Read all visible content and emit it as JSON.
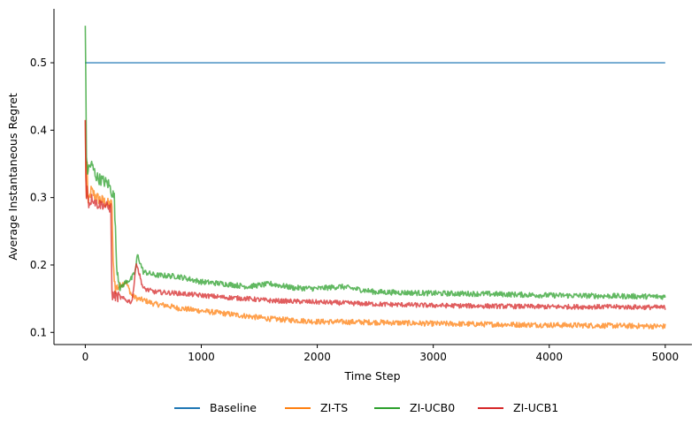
{
  "chart_data": {
    "type": "line",
    "title": "",
    "xlabel": "Time Step",
    "ylabel": "Average Instantaneous Regret",
    "xlim": [
      -270,
      5230
    ],
    "ylim": [
      0.082,
      0.58
    ],
    "xticks": [
      0,
      1000,
      2000,
      3000,
      4000,
      5000
    ],
    "xtick_labels": [
      "0",
      "1000",
      "2000",
      "3000",
      "4000",
      "5000"
    ],
    "yticks": [
      0.1,
      0.2,
      0.3,
      0.4,
      0.5
    ],
    "ytick_labels": [
      "0.1",
      "0.2",
      "0.3",
      "0.4",
      "0.5"
    ],
    "grid": false,
    "legend_placement": "bottom-center",
    "series": [
      {
        "name": "Baseline",
        "color": "#1f77b4",
        "noise": 0,
        "points": [
          [
            0,
            0.5
          ],
          [
            5000,
            0.5
          ]
        ]
      },
      {
        "name": "ZI-TS",
        "color": "#ff7f0e",
        "noise": 0.004,
        "points": [
          [
            0,
            0.415
          ],
          [
            8,
            0.28
          ],
          [
            15,
            0.35
          ],
          [
            25,
            0.29
          ],
          [
            50,
            0.31
          ],
          [
            100,
            0.3
          ],
          [
            150,
            0.295
          ],
          [
            200,
            0.29
          ],
          [
            230,
            0.29
          ],
          [
            240,
            0.2
          ],
          [
            260,
            0.165
          ],
          [
            300,
            0.17
          ],
          [
            350,
            0.175
          ],
          [
            400,
            0.155
          ],
          [
            450,
            0.15
          ],
          [
            500,
            0.148
          ],
          [
            600,
            0.142
          ],
          [
            700,
            0.14
          ],
          [
            800,
            0.136
          ],
          [
            1000,
            0.132
          ],
          [
            1200,
            0.128
          ],
          [
            1400,
            0.124
          ],
          [
            1600,
            0.12
          ],
          [
            1800,
            0.118
          ],
          [
            2000,
            0.116
          ],
          [
            2500,
            0.115
          ],
          [
            3000,
            0.113
          ],
          [
            3500,
            0.112
          ],
          [
            4000,
            0.111
          ],
          [
            4500,
            0.11
          ],
          [
            5000,
            0.109
          ]
        ]
      },
      {
        "name": "ZI-UCB0",
        "color": "#2ca02c",
        "noise": 0.004,
        "points": [
          [
            0,
            0.555
          ],
          [
            5,
            0.47
          ],
          [
            10,
            0.36
          ],
          [
            20,
            0.34
          ],
          [
            50,
            0.35
          ],
          [
            100,
            0.33
          ],
          [
            150,
            0.325
          ],
          [
            200,
            0.32
          ],
          [
            250,
            0.3
          ],
          [
            270,
            0.2
          ],
          [
            300,
            0.165
          ],
          [
            350,
            0.175
          ],
          [
            400,
            0.18
          ],
          [
            430,
            0.19
          ],
          [
            450,
            0.215
          ],
          [
            470,
            0.205
          ],
          [
            500,
            0.19
          ],
          [
            600,
            0.185
          ],
          [
            800,
            0.183
          ],
          [
            1000,
            0.175
          ],
          [
            1200,
            0.172
          ],
          [
            1400,
            0.168
          ],
          [
            1600,
            0.172
          ],
          [
            1800,
            0.166
          ],
          [
            2000,
            0.165
          ],
          [
            2200,
            0.168
          ],
          [
            2500,
            0.16
          ],
          [
            3000,
            0.158
          ],
          [
            3500,
            0.157
          ],
          [
            4000,
            0.155
          ],
          [
            4500,
            0.154
          ],
          [
            5000,
            0.153
          ]
        ]
      },
      {
        "name": "ZI-UCB1",
        "color": "#d62728",
        "noise": 0.0035,
        "points": [
          [
            0,
            0.415
          ],
          [
            8,
            0.29
          ],
          [
            15,
            0.32
          ],
          [
            30,
            0.29
          ],
          [
            60,
            0.3
          ],
          [
            100,
            0.29
          ],
          [
            150,
            0.29
          ],
          [
            200,
            0.285
          ],
          [
            220,
            0.285
          ],
          [
            230,
            0.155
          ],
          [
            300,
            0.152
          ],
          [
            350,
            0.148
          ],
          [
            400,
            0.145
          ],
          [
            420,
            0.17
          ],
          [
            440,
            0.205
          ],
          [
            460,
            0.19
          ],
          [
            500,
            0.165
          ],
          [
            600,
            0.16
          ],
          [
            800,
            0.158
          ],
          [
            1000,
            0.155
          ],
          [
            1200,
            0.152
          ],
          [
            1400,
            0.15
          ],
          [
            1600,
            0.147
          ],
          [
            2000,
            0.145
          ],
          [
            2500,
            0.142
          ],
          [
            3000,
            0.14
          ],
          [
            3500,
            0.139
          ],
          [
            4000,
            0.138
          ],
          [
            4500,
            0.138
          ],
          [
            5000,
            0.137
          ]
        ]
      }
    ]
  }
}
